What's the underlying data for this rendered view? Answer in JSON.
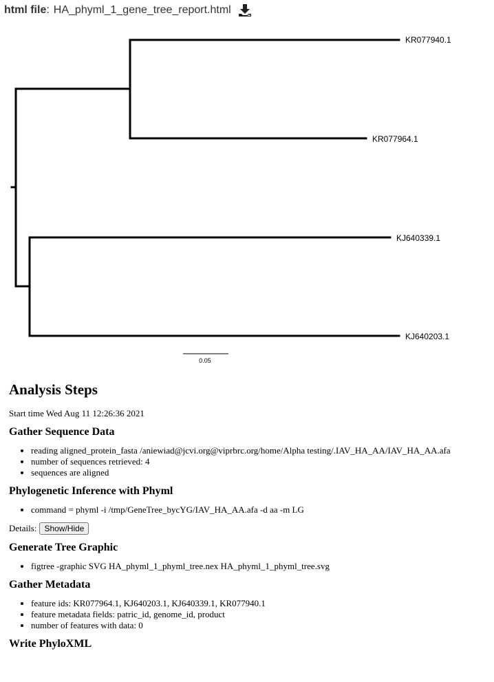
{
  "header": {
    "label": "html file",
    "separator": ":",
    "filename": "HA_phyml_1_gene_tree_report.html",
    "download_icon": "download-icon"
  },
  "tree": {
    "leaves": [
      "KR077940.1",
      "KR077964.1",
      "KJ640339.1",
      "KJ640203.1"
    ],
    "scale_label": "0.05"
  },
  "analysis": {
    "title": "Analysis Steps",
    "start_time": "Start time Wed Aug 11 12:26:36 2021",
    "sections": [
      {
        "title": "Gather Sequence Data",
        "items": [
          "reading aligned_protein_fasta /aniewiad@jcvi.org@viprbrc.org/home/Alpha testing/.IAV_HA_AA/IAV_HA_AA.afa",
          "number of sequences retrieved: 4",
          "sequences are aligned"
        ]
      },
      {
        "title": "Phylogenetic Inference with Phyml",
        "items": [
          "command = phyml -i /tmp/GeneTree_bycYG/IAV_HA_AA.afa -d aa -m LG"
        ]
      },
      {
        "title": "Generate Tree Graphic",
        "items": [
          "figtree -graphic SVG HA_phyml_1_phyml_tree.nex HA_phyml_1_phyml_tree.svg"
        ]
      },
      {
        "title": "Gather Metadata",
        "items": [
          "feature ids: KR077964.1, KJ640203.1, KJ640339.1, KR077940.1",
          "feature metadata fields: patric_id, genome_id, product",
          "number of features with data: 0"
        ]
      },
      {
        "title": "Write PhyloXML",
        "items": []
      }
    ],
    "details_label": "Details:",
    "details_button": "Show/Hide"
  }
}
